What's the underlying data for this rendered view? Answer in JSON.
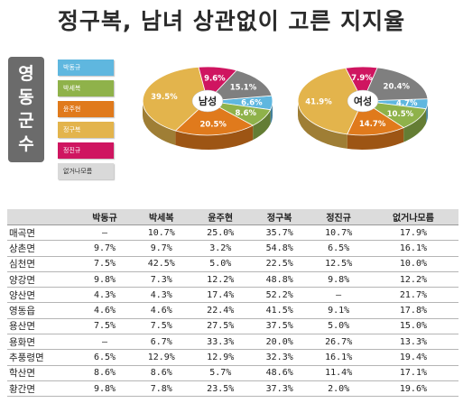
{
  "title": "정구복, 남녀 상관없이 고른 지지율",
  "region_label": [
    "영",
    "동",
    "군",
    "수"
  ],
  "legend": [
    {
      "name": "박동규",
      "color": "#5fb7df"
    },
    {
      "name": "박세복",
      "color": "#8fb24a"
    },
    {
      "name": "윤주현",
      "color": "#e07a1c"
    },
    {
      "name": "정구복",
      "color": "#e3b44c"
    },
    {
      "name": "정진규",
      "color": "#cf1560"
    },
    {
      "name": "없거나모름",
      "color": "#7f7f7f"
    }
  ],
  "chart_data": [
    {
      "type": "pie",
      "title": "남성",
      "categories": [
        "박동규",
        "박세복",
        "윤주현",
        "정구복",
        "정진규",
        "없거나모름"
      ],
      "values": [
        6.6,
        8.6,
        20.5,
        39.5,
        9.6,
        15.1
      ],
      "labels": [
        "6.6%",
        "8.6%",
        "20.5%",
        "39.5%",
        "9.6%",
        "15.1%"
      ]
    },
    {
      "type": "pie",
      "title": "여성",
      "categories": [
        "박동규",
        "박세복",
        "윤주현",
        "정구복",
        "정진규",
        "없거나모름"
      ],
      "values": [
        4.7,
        10.5,
        14.7,
        41.9,
        7.9,
        20.4
      ],
      "labels": [
        "4.7%",
        "10.5%",
        "14.7%",
        "41.9%",
        "7.9%",
        "20.4%"
      ]
    }
  ],
  "table": {
    "headers": [
      "",
      "박동규",
      "박세복",
      "윤주현",
      "정구복",
      "정진규",
      "없거나모름"
    ],
    "rows": [
      [
        "매곡면",
        "–",
        "10.7%",
        "25.0%",
        "35.7%",
        "10.7%",
        "17.9%"
      ],
      [
        "상촌면",
        "9.7%",
        "9.7%",
        "3.2%",
        "54.8%",
        "6.5%",
        "16.1%"
      ],
      [
        "심천면",
        "7.5%",
        "42.5%",
        "5.0%",
        "22.5%",
        "12.5%",
        "10.0%"
      ],
      [
        "양강면",
        "9.8%",
        "7.3%",
        "12.2%",
        "48.8%",
        "9.8%",
        "12.2%"
      ],
      [
        "양산면",
        "4.3%",
        "4.3%",
        "17.4%",
        "52.2%",
        "–",
        "21.7%"
      ],
      [
        "영동읍",
        "4.6%",
        "4.6%",
        "22.4%",
        "41.5%",
        "9.1%",
        "17.8%"
      ],
      [
        "용산면",
        "7.5%",
        "7.5%",
        "27.5%",
        "37.5%",
        "5.0%",
        "15.0%"
      ],
      [
        "용화면",
        "–",
        "6.7%",
        "33.3%",
        "20.0%",
        "26.7%",
        "13.3%"
      ],
      [
        "추풍령면",
        "6.5%",
        "12.9%",
        "12.9%",
        "32.3%",
        "16.1%",
        "19.4%"
      ],
      [
        "학산면",
        "8.6%",
        "8.6%",
        "5.7%",
        "48.6%",
        "11.4%",
        "17.1%"
      ],
      [
        "황간면",
        "9.8%",
        "7.8%",
        "23.5%",
        "37.3%",
        "2.0%",
        "19.6%"
      ]
    ]
  }
}
